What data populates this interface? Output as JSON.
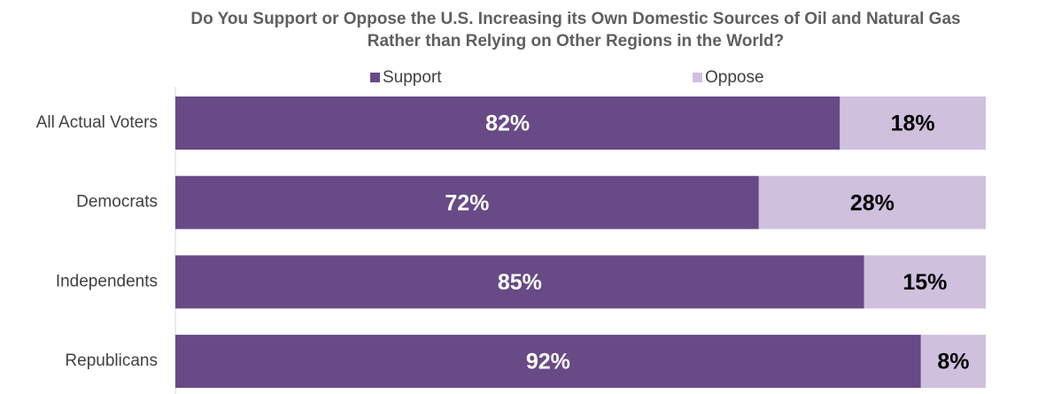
{
  "chart_data": {
    "type": "stacked-bar-horizontal",
    "title": [
      "Do You Support or Oppose the U.S. Increasing its Own Domestic Sources of Oil and Natural Gas",
      "Rather than Relying on Other Regions in the World?"
    ],
    "categories": [
      "All Actual Voters",
      "Democrats",
      "Independents",
      "Republicans"
    ],
    "series": [
      {
        "name": "Support",
        "color": "#674a86",
        "values": [
          82,
          72,
          85,
          92
        ],
        "value_labels": [
          "82%",
          "72%",
          "85%",
          "92%"
        ]
      },
      {
        "name": "Oppose",
        "color": "#cfc0de",
        "values": [
          18,
          28,
          15,
          8
        ],
        "value_labels": [
          "18%",
          "28%",
          "15%",
          "8%"
        ]
      }
    ],
    "xlim": [
      0,
      100
    ]
  }
}
